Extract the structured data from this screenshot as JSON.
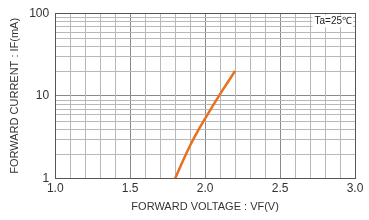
{
  "chart_data": {
    "type": "line",
    "annotation": "Ta=25℃",
    "x_label": "FORWARD VOLTAGE : VF(V)",
    "y_label": "FORWARD CURRENT : IF(mA)",
    "series": [
      {
        "name": "IF",
        "color": "#e8701e",
        "x": [
          1.8,
          1.85,
          1.9,
          1.95,
          2.0,
          2.05,
          2.1,
          2.15,
          2.2
        ],
        "values": [
          1,
          1.6,
          2.5,
          3.7,
          5.3,
          7.5,
          10.5,
          14.5,
          20
        ]
      }
    ],
    "xlim": [
      1,
      3
    ],
    "xticks": [
      {
        "value": 1,
        "label": "1.0"
      },
      1.5,
      {
        "value": 2,
        "label": "2.0"
      },
      2.5,
      {
        "value": 3,
        "label": "3.0"
      }
    ],
    "ylim": [
      1,
      100
    ],
    "yticks": [
      1,
      10,
      100
    ],
    "log": "y",
    "grid": true
  }
}
